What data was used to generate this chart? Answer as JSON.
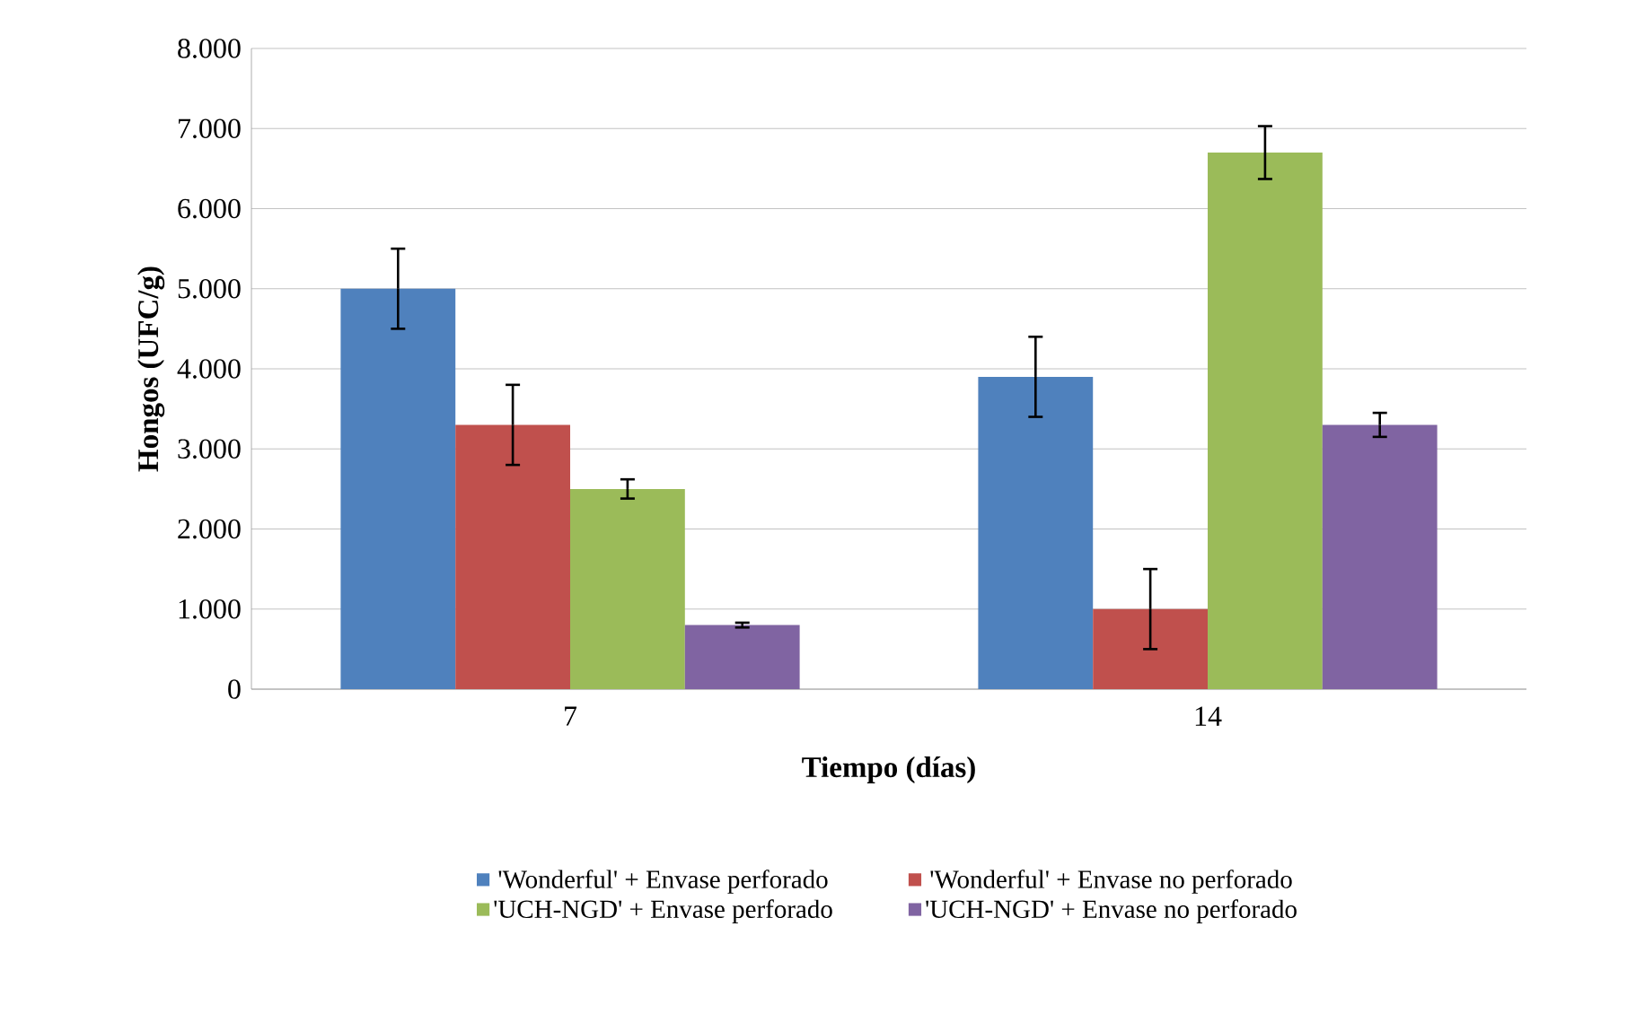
{
  "chart_data": {
    "type": "bar",
    "xlabel": "Tiempo (días)",
    "ylabel": "Hongos (UFC/g)",
    "categories": [
      "7",
      "14"
    ],
    "series": [
      {
        "name": "'Wonderful' + Envase perforado",
        "color": "#4f81bd",
        "values": [
          5000,
          3900
        ],
        "errors": [
          500,
          500
        ]
      },
      {
        "name": "'Wonderful' + Envase no perforado",
        "color": "#c0504d",
        "values": [
          3300,
          1000
        ],
        "errors": [
          500,
          500
        ]
      },
      {
        "name": "'UCH-NGD' + Envase perforado",
        "color": "#9bbb59",
        "values": [
          2500,
          6700
        ],
        "errors": [
          120,
          330
        ]
      },
      {
        "name": "'UCH-NGD' + Envase no perforado",
        "color": "#8064a2",
        "values": [
          800,
          3300
        ],
        "errors": [
          30,
          150
        ]
      }
    ],
    "ylim": [
      0,
      8000
    ],
    "yticks": [
      {
        "value": 0,
        "label": "0"
      },
      {
        "value": 1000,
        "label": "1.000"
      },
      {
        "value": 2000,
        "label": "2.000"
      },
      {
        "value": 3000,
        "label": "3.000"
      },
      {
        "value": 4000,
        "label": "4.000"
      },
      {
        "value": 5000,
        "label": "5.000"
      },
      {
        "value": 6000,
        "label": "6.000"
      },
      {
        "value": 7000,
        "label": "7.000"
      },
      {
        "value": 8000,
        "label": "8.000"
      }
    ],
    "grid": "y",
    "legend": "bottom"
  }
}
